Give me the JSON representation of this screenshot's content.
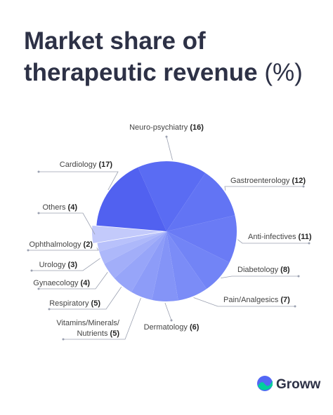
{
  "title": "Market share of therapeutic revenue",
  "title_unit": "(%)",
  "brand": "Groww",
  "chart_data": {
    "type": "pie",
    "categories": [
      "Neuro-psychiatry",
      "Gastroenterology",
      "Anti-infectives",
      "Diabetology",
      "Pain/Analgesics",
      "Dermatology",
      "Vitamins/Minerals/ Nutrients",
      "Respiratory",
      "Gynaecology",
      "Urology",
      "Ophthalmology",
      "Others",
      "Cardiology"
    ],
    "values": [
      16,
      12,
      11,
      8,
      7,
      6,
      5,
      5,
      4,
      3,
      2,
      4,
      17
    ],
    "value_labels": [
      "(16)",
      "(12)",
      "(11)",
      "(8)",
      "(7)",
      "(6)",
      "(5)",
      "(5)",
      "(4)",
      "(3)",
      "(2)",
      "(4)",
      "(17)"
    ],
    "colors": [
      "#5a6cf3",
      "#6274f4",
      "#6a7bf5",
      "#7284f6",
      "#7b8cf7",
      "#8494f7",
      "#8d9cf8",
      "#97a5f9",
      "#a2aef9",
      "#adb8fa",
      "#b8c1fb",
      "#c3cafb",
      "#5161f0"
    ]
  }
}
